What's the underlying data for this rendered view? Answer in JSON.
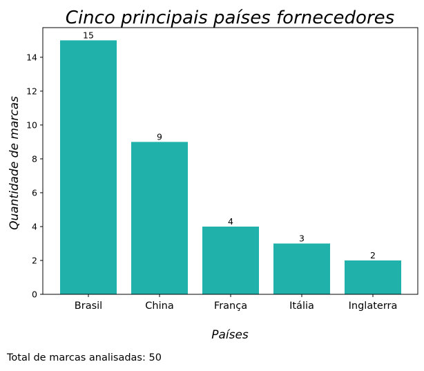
{
  "chart_data": {
    "type": "bar",
    "title": "Cinco principais países fornecedores",
    "xlabel": "Países",
    "ylabel": "Quantidade de marcas",
    "categories": [
      "Brasil",
      "China",
      "França",
      "Itália",
      "Inglaterra"
    ],
    "values": [
      15,
      9,
      4,
      3,
      2
    ],
    "data_labels": [
      "15",
      "9",
      "4",
      "3",
      "2"
    ],
    "ylim": [
      0,
      15.75
    ],
    "yticks": [
      0,
      2,
      4,
      6,
      8,
      10,
      12,
      14
    ],
    "bar_color": "#20b2aa",
    "grid": false,
    "legend": "none"
  },
  "footnote": "Total de marcas analisadas: 50"
}
